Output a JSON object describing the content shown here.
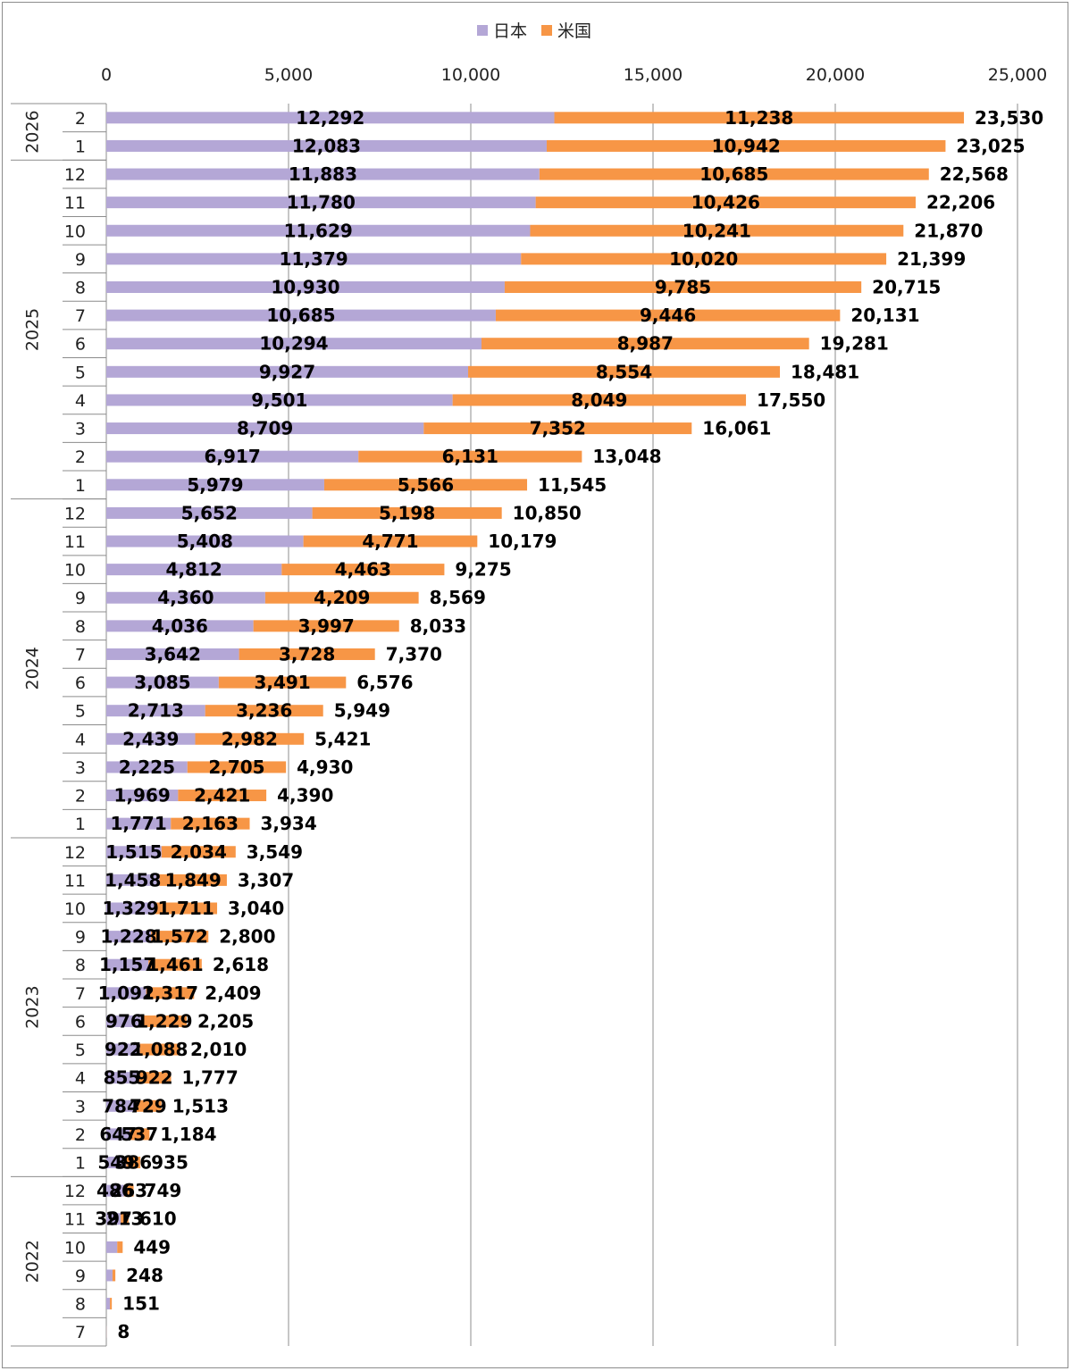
{
  "chart_data": {
    "type": "bar",
    "orientation": "horizontal",
    "stacked": true,
    "title": "",
    "xlabel": "",
    "ylabel": "",
    "xlim": [
      0,
      25000
    ],
    "x_ticks": [
      "0",
      "5,000",
      "10,000",
      "15,000",
      "20,000",
      "25,000"
    ],
    "grid": true,
    "legend_position": "top-center",
    "colors": {
      "japan": "#b4a7d6",
      "us": "#f79646"
    },
    "series": [
      {
        "name": "日本",
        "color": "#b4a7d6"
      },
      {
        "name": "米国",
        "color": "#f79646"
      }
    ],
    "years": [
      {
        "label": "2026",
        "months": [
          "2",
          "1"
        ]
      },
      {
        "label": "2025",
        "months": [
          "12",
          "11",
          "10",
          "9",
          "8",
          "7",
          "6",
          "5",
          "4",
          "3",
          "2",
          "1"
        ]
      },
      {
        "label": "2024",
        "months": [
          "12",
          "11",
          "10",
          "9",
          "8",
          "7",
          "6",
          "5",
          "4",
          "3",
          "2",
          "1"
        ]
      },
      {
        "label": "2023",
        "months": [
          "12",
          "11",
          "10",
          "9",
          "8",
          "7",
          "6",
          "5",
          "4",
          "3",
          "2",
          "1"
        ]
      },
      {
        "label": "2022",
        "months": [
          "12",
          "11",
          "10",
          "9",
          "8",
          "7"
        ]
      }
    ],
    "rows": [
      {
        "japan": 12292,
        "us": 11238,
        "japan_label": "12,292",
        "us_label": "11,238",
        "total_label": "23,530"
      },
      {
        "japan": 12083,
        "us": 10942,
        "japan_label": "12,083",
        "us_label": "10,942",
        "total_label": "23,025"
      },
      {
        "japan": 11883,
        "us": 10685,
        "japan_label": "11,883",
        "us_label": "10,685",
        "total_label": "22,568"
      },
      {
        "japan": 11780,
        "us": 10426,
        "japan_label": "11,780",
        "us_label": "10,426",
        "total_label": "22,206"
      },
      {
        "japan": 11629,
        "us": 10241,
        "japan_label": "11,629",
        "us_label": "10,241",
        "total_label": "21,870"
      },
      {
        "japan": 11379,
        "us": 10020,
        "japan_label": "11,379",
        "us_label": "10,020",
        "total_label": "21,399"
      },
      {
        "japan": 10930,
        "us": 9785,
        "japan_label": "10,930",
        "us_label": "9,785",
        "total_label": "20,715"
      },
      {
        "japan": 10685,
        "us": 9446,
        "japan_label": "10,685",
        "us_label": "9,446",
        "total_label": "20,131"
      },
      {
        "japan": 10294,
        "us": 8987,
        "japan_label": "10,294",
        "us_label": "8,987",
        "total_label": "19,281"
      },
      {
        "japan": 9927,
        "us": 8554,
        "japan_label": "9,927",
        "us_label": "8,554",
        "total_label": "18,481"
      },
      {
        "japan": 9501,
        "us": 8049,
        "japan_label": "9,501",
        "us_label": "8,049",
        "total_label": "17,550"
      },
      {
        "japan": 8709,
        "us": 7352,
        "japan_label": "8,709",
        "us_label": "7,352",
        "total_label": "16,061"
      },
      {
        "japan": 6917,
        "us": 6131,
        "japan_label": "6,917",
        "us_label": "6,131",
        "total_label": "13,048"
      },
      {
        "japan": 5979,
        "us": 5566,
        "japan_label": "5,979",
        "us_label": "5,566",
        "total_label": "11,545"
      },
      {
        "japan": 5652,
        "us": 5198,
        "japan_label": "5,652",
        "us_label": "5,198",
        "total_label": "10,850"
      },
      {
        "japan": 5408,
        "us": 4771,
        "japan_label": "5,408",
        "us_label": "4,771",
        "total_label": "10,179"
      },
      {
        "japan": 4812,
        "us": 4463,
        "japan_label": "4,812",
        "us_label": "4,463",
        "total_label": "9,275"
      },
      {
        "japan": 4360,
        "us": 4209,
        "japan_label": "4,360",
        "us_label": "4,209",
        "total_label": "8,569"
      },
      {
        "japan": 4036,
        "us": 3997,
        "japan_label": "4,036",
        "us_label": "3,997",
        "total_label": "8,033"
      },
      {
        "japan": 3642,
        "us": 3728,
        "japan_label": "3,642",
        "us_label": "3,728",
        "total_label": "7,370"
      },
      {
        "japan": 3085,
        "us": 3491,
        "japan_label": "3,085",
        "us_label": "3,491",
        "total_label": "6,576"
      },
      {
        "japan": 2713,
        "us": 3236,
        "japan_label": "2,713",
        "us_label": "3,236",
        "total_label": "5,949"
      },
      {
        "japan": 2439,
        "us": 2982,
        "japan_label": "2,439",
        "us_label": "2,982",
        "total_label": "5,421"
      },
      {
        "japan": 2225,
        "us": 2705,
        "japan_label": "2,225",
        "us_label": "2,705",
        "total_label": "4,930"
      },
      {
        "japan": 1969,
        "us": 2421,
        "japan_label": "1,969",
        "us_label": "2,421",
        "total_label": "4,390"
      },
      {
        "japan": 1771,
        "us": 2163,
        "japan_label": "1,771",
        "us_label": "2,163",
        "total_label": "3,934"
      },
      {
        "japan": 1515,
        "us": 2034,
        "japan_label": "1,515",
        "us_label": "2,034",
        "total_label": "3,549"
      },
      {
        "japan": 1458,
        "us": 1849,
        "japan_label": "1,458",
        "us_label": "1,849",
        "total_label": "3,307"
      },
      {
        "japan": 1329,
        "us": 1711,
        "japan_label": "1,329",
        "us_label": "1,711",
        "total_label": "3,040"
      },
      {
        "japan": 1228,
        "us": 1572,
        "japan_label": "1,228",
        "us_label": "1,572",
        "total_label": "2,800"
      },
      {
        "japan": 1157,
        "us": 1461,
        "japan_label": "1,157",
        "us_label": "1,461",
        "total_label": "2,618"
      },
      {
        "japan": 1092,
        "us": 1317,
        "japan_label": "1,092",
        "us_label": "1,317",
        "total_label": "2,409"
      },
      {
        "japan": 976,
        "us": 1229,
        "japan_label": "976",
        "us_label": "1,229",
        "total_label": "2,205"
      },
      {
        "japan": 922,
        "us": 1088,
        "japan_label": "922",
        "us_label": "1,088",
        "total_label": "2,010"
      },
      {
        "japan": 855,
        "us": 922,
        "japan_label": "855",
        "us_label": "922",
        "total_label": "1,777"
      },
      {
        "japan": 784,
        "us": 729,
        "japan_label": "784",
        "us_label": "729",
        "total_label": "1,513"
      },
      {
        "japan": 647,
        "us": 537,
        "japan_label": "647",
        "us_label": "537",
        "total_label": "1,184"
      },
      {
        "japan": 549,
        "us": 386,
        "japan_label": "549",
        "us_label": "386",
        "total_label": "935"
      },
      {
        "japan": 486,
        "us": 263,
        "japan_label": "486",
        "us_label": "263",
        "total_label": "749"
      },
      {
        "japan": 397,
        "us": 213,
        "japan_label": "397",
        "us_label": "213",
        "total_label": "610"
      },
      {
        "japan": 300,
        "us": 149,
        "japan_label": "",
        "us_label": "",
        "total_label": "449"
      },
      {
        "japan": 170,
        "us": 78,
        "japan_label": "",
        "us_label": "",
        "total_label": "248"
      },
      {
        "japan": 100,
        "us": 51,
        "japan_label": "",
        "us_label": "",
        "total_label": "151"
      },
      {
        "japan": 6,
        "us": 2,
        "japan_label": "",
        "us_label": "",
        "total_label": "8"
      }
    ]
  }
}
